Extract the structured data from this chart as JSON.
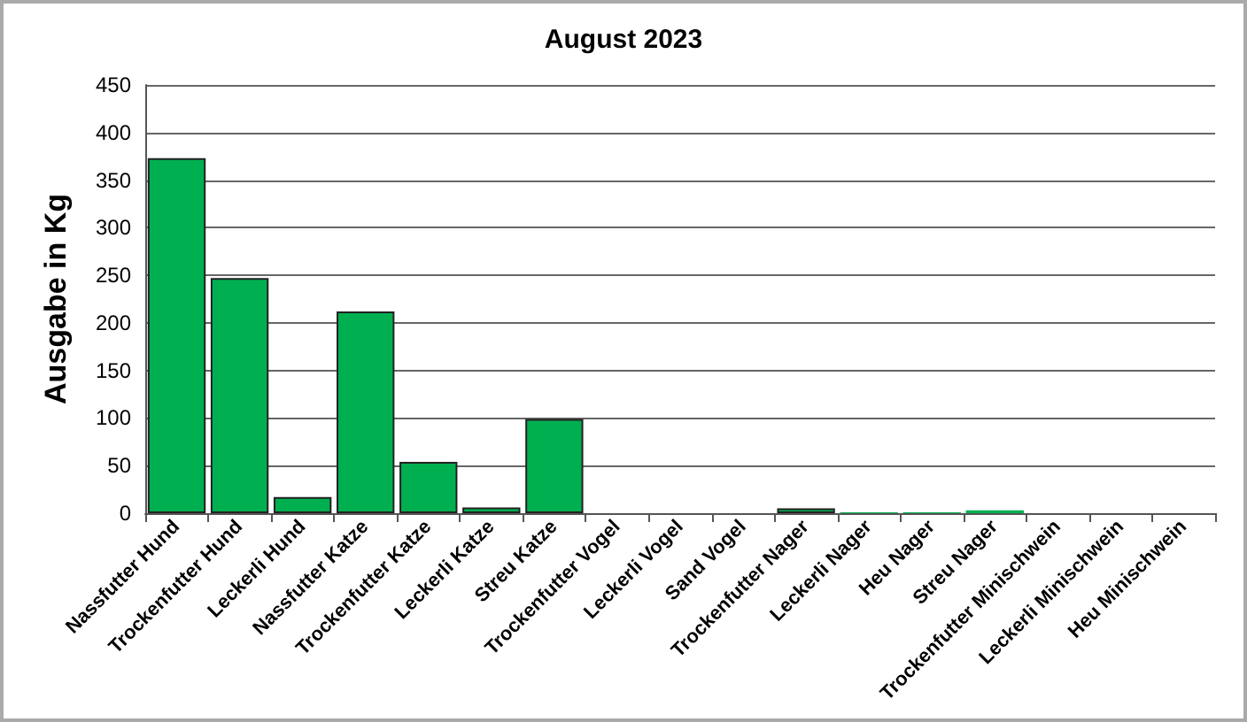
{
  "chart_data": {
    "type": "bar",
    "title": "August 2023",
    "ylabel": "Ausgabe in Kg",
    "categories": [
      "Nassfutter Hund",
      "Trockenfutter Hund",
      "Leckerli Hund",
      "Nassfutter Katze",
      "Trockenfutter Katze",
      "Leckerli Katze",
      "Streu Katze",
      "Trockenfutter Vogel",
      "Leckerli Vogel",
      "Sand Vogel",
      "Trockenfutter Nager",
      "Leckerli Nager",
      "Heu Nager",
      "Streu Nager",
      "Trockenfutter Minischwein",
      "Leckerli Minischwein",
      "Heu Minischwein"
    ],
    "values": [
      373,
      247,
      17,
      212,
      54,
      6,
      99,
      0,
      0,
      0,
      5,
      1,
      1,
      3,
      0,
      0,
      0
    ],
    "color": "#00b050",
    "ylim": [
      0,
      450
    ],
    "yticks": [
      0,
      50,
      100,
      150,
      200,
      250,
      300,
      350,
      400,
      450
    ],
    "grid": "y"
  }
}
